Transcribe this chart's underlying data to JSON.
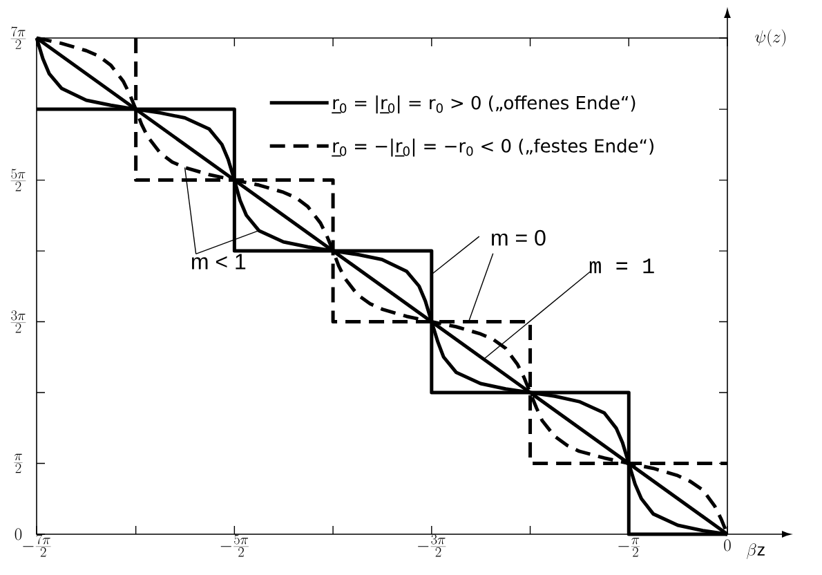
{
  "chart_data": {
    "type": "line",
    "xlabel": "\\beta\\mathrm{z}",
    "ylabel": "\\psi(z)",
    "xlim": [
      -11,
      0
    ],
    "ylim": [
      0,
      11
    ],
    "xticks": [
      {
        "value": -11,
        "label": "-\\frac{7\\pi}{2}"
      },
      {
        "value": -9.42,
        "label": null
      },
      {
        "value": -7.85,
        "label": "-\\frac{5\\pi}{2}"
      },
      {
        "value": -6.28,
        "label": null
      },
      {
        "value": -4.71,
        "label": "-\\frac{3\\pi}{2}"
      },
      {
        "value": -3.14,
        "label": null
      },
      {
        "value": -1.57,
        "label": "-\\frac{\\pi}{2}"
      },
      {
        "value": 0,
        "label": "0"
      }
    ],
    "yticks": [
      {
        "value": 0,
        "label": "0"
      },
      {
        "value": 1.57,
        "label": "\\frac{\\pi}{2}"
      },
      {
        "value": 3.14,
        "label": null
      },
      {
        "value": 4.71,
        "label": "\\frac{3\\pi}{2}"
      },
      {
        "value": 6.28,
        "label": null
      },
      {
        "value": 7.85,
        "label": "\\frac{5\\pi}{2}"
      },
      {
        "value": 9.42,
        "label": null
      },
      {
        "value": 11,
        "label": "\\frac{7\\pi}{2}"
      }
    ],
    "legend": "top",
    "series": [
      {
        "name": "r̲$_{0}$ = |r̲$_{0}$| = r$_{0}$ > 0 („offenes Ende“)",
        "color": "#000000",
        "line_style": "solid",
        "x": [
          -11,
          -7.85,
          -7.85,
          -4.71,
          -4.71,
          -1.57,
          -1.57,
          0
        ],
        "values": [
          9.42,
          9.42,
          6.28,
          6.28,
          3.14,
          3.14,
          0,
          0
        ]
      },
      {
        "name": "r̲$_{0}$ = −|r̲$_{0}$| = −r$_{0}$ < 0 („festes Ende“)",
        "color": "#000000",
        "line_style": "dashed",
        "x": [
          -9.42,
          -9.42,
          -6.28,
          -6.28,
          -3.14,
          -3.14,
          0
        ],
        "values": [
          11,
          7.85,
          7.85,
          4.71,
          4.71,
          1.57,
          1.57
        ]
      },
      {
        "color": "#000000",
        "line_style": "solid",
        "x": [
          -11,
          0
        ],
        "values": [
          11,
          0
        ]
      },
      {
        "color": "#000000",
        "line_style": "solid",
        "x": [
          -11,
          -10.9,
          -10.8,
          -10.6,
          -10.21,
          -9.82,
          -9.42,
          -9.03,
          -8.64,
          -8.25,
          -8.05,
          -7.95,
          -7.85,
          -7.76,
          -7.66,
          -7.46,
          -7.07,
          -6.68,
          -6.28,
          -5.89,
          -5.5,
          -5.11,
          -4.91,
          -4.81,
          -4.71,
          -4.61,
          -4.52,
          -4.32,
          -3.93,
          -3.53,
          -3.14,
          -2.75,
          -2.36,
          -1.96,
          -1.77,
          -1.67,
          -1.57,
          -1.47,
          -1.37,
          -1.18,
          -0.79,
          -0.39,
          0
        ],
        "values": [
          11,
          10.54,
          10.21,
          9.88,
          9.62,
          9.51,
          9.42,
          9.34,
          9.23,
          8.98,
          8.64,
          8.31,
          7.85,
          7.4,
          7.07,
          6.73,
          6.48,
          6.37,
          6.28,
          6.2,
          6.09,
          5.83,
          5.5,
          5.17,
          4.71,
          4.26,
          3.93,
          3.59,
          3.34,
          3.22,
          3.14,
          3.06,
          2.94,
          2.69,
          2.35,
          2.03,
          1.57,
          1.11,
          0.79,
          0.45,
          0.2,
          0.08,
          0
        ]
      },
      {
        "color": "#000000",
        "line_style": "dashed",
        "x": [
          -11,
          -10.6,
          -10.21,
          -10.01,
          -9.82,
          -9.62,
          -9.52,
          -9.42,
          -9.33,
          -9.23,
          -9.03,
          -8.84,
          -8.64,
          -8.25,
          -7.85,
          -7.46,
          -7.07,
          -6.87,
          -6.68,
          -6.48,
          -6.38,
          -6.28,
          -6.19,
          -6.09,
          -5.89,
          -5.69,
          -5.5,
          -5.11,
          -4.71,
          -4.32,
          -3.93,
          -3.73,
          -3.53,
          -3.34,
          -3.24,
          -3.14,
          -3.04,
          -2.95,
          -2.75,
          -2.55,
          -2.36,
          -1.96,
          -1.57,
          -1.18,
          -0.79,
          -0.59,
          -0.39,
          -0.2,
          -0.1,
          0
        ],
        "values": [
          11,
          10.88,
          10.72,
          10.6,
          10.4,
          10.04,
          9.76,
          9.42,
          9.09,
          8.81,
          8.45,
          8.25,
          8.13,
          7.97,
          7.85,
          7.74,
          7.58,
          7.46,
          7.26,
          6.9,
          6.62,
          6.28,
          5.95,
          5.67,
          5.31,
          5.11,
          4.99,
          4.83,
          4.71,
          4.6,
          4.44,
          4.32,
          4.12,
          3.76,
          3.48,
          3.14,
          2.8,
          2.52,
          2.17,
          1.97,
          1.84,
          1.69,
          1.57,
          1.46,
          1.3,
          1.17,
          0.98,
          0.62,
          0.34,
          0
        ]
      }
    ],
    "annotations": [
      {
        "text": "m < 1",
        "x": -7.46,
        "y": 6.73
      },
      {
        "text": "m = 0",
        "x": -4.71,
        "y": 5.76
      },
      {
        "text": "m = 1",
        "x": -3.88,
        "y": 3.88
      }
    ]
  }
}
